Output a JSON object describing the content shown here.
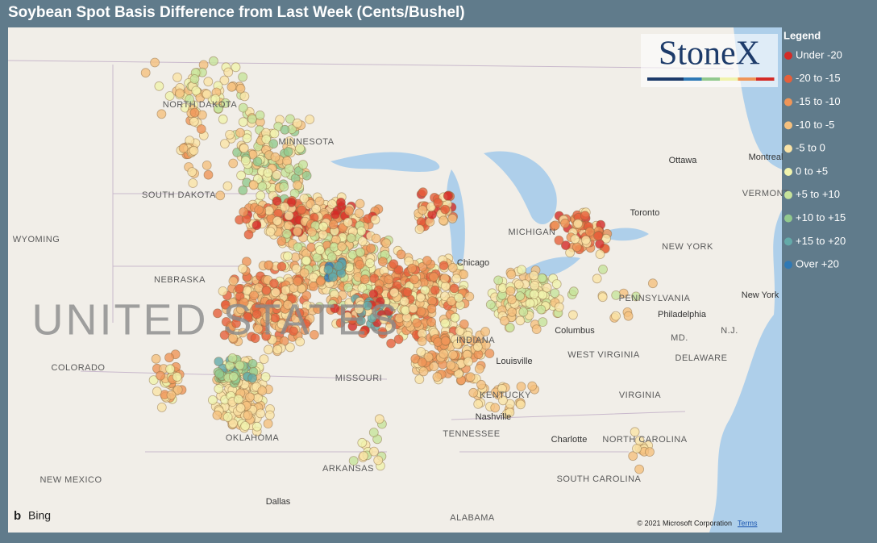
{
  "title": "Soybean Spot Basis Difference from Last Week (Cents/Bushel)",
  "logo": "StoneX",
  "legend": {
    "title": "Legend",
    "items": [
      {
        "label": "Under -20",
        "color": "#d42b27"
      },
      {
        "label": "-20 to -15",
        "color": "#e6603b"
      },
      {
        "label": "-15 to -10",
        "color": "#ef9558"
      },
      {
        "label": "-10 to -5",
        "color": "#f5c07e"
      },
      {
        "label": "-5 to 0",
        "color": "#fae3a6"
      },
      {
        "label": "0 to +5",
        "color": "#f0f3ad"
      },
      {
        "label": "+5 to +10",
        "color": "#c7e39b"
      },
      {
        "label": "+10 to +15",
        "color": "#92c98e"
      },
      {
        "label": "+15 to +20",
        "color": "#64aaa9"
      },
      {
        "label": "Over +20",
        "color": "#2f79b5"
      }
    ]
  },
  "map_labels": [
    "NORTH DAKOTA",
    "MINNESOTA",
    "SOUTH DAKOTA",
    "WYOMING",
    "NEBRASKA",
    "COLORADO",
    "MISSOURI",
    "KENTUCKY",
    "TENNESSEE",
    "ARKANSAS",
    "NEW MEXICO",
    "OKLAHOMA",
    "ALABAMA",
    "Dallas",
    "Nashville",
    "Louisville",
    "Charlotte",
    "NORTH CAROLINA",
    "SOUTH CAROLINA",
    "VIRGINIA",
    "WEST VIRGINIA",
    "PENNSYLVANIA",
    "NEW YORK",
    "Philadelphia",
    "Columbus",
    "Chicago",
    "MICHIGAN",
    "Ottawa",
    "Toronto",
    "INDIANA",
    "Montreal",
    "VERMONT",
    "MD.",
    "DELAWARE",
    "N.J.",
    "New York"
  ],
  "country_label": "UNITED STATES",
  "attribution": {
    "provider": "Bing",
    "copyright": "© 2021 Microsoft Corporation",
    "terms": "Terms"
  }
}
